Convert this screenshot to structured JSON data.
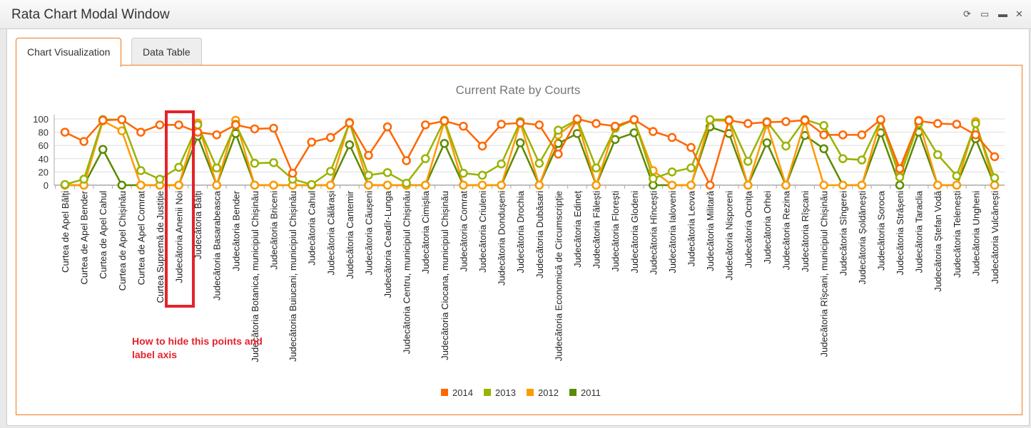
{
  "window": {
    "title": "Rata Chart Modal Window",
    "icons": [
      "refresh-icon",
      "maximize-icon",
      "minimize-icon",
      "close-icon"
    ]
  },
  "tabs": [
    {
      "label": "Chart Visualization",
      "active": true
    },
    {
      "label": "Data Table",
      "active": false
    }
  ],
  "annotation": "How to hide this points and label axis",
  "chart_data": {
    "type": "line",
    "title": "Current Rate by Courts",
    "ylim": [
      0,
      100
    ],
    "yticks": [
      0,
      20,
      40,
      60,
      80,
      100
    ],
    "grid": true,
    "legend": "bottom",
    "categories": [
      "Curtea de Apel Bălți",
      "Curtea de Apel Bender",
      "Curtea de Apel Cahul",
      "Curtea de Apel Chișinău",
      "Curtea de Apel Comrat",
      "Curtea Supremă de Justiție",
      "Judecătoria Anenii Noi",
      "Judecătoria Bălți",
      "Judecătoria Basarabeasca",
      "Judecătoria Bender",
      "Judecătoria Botanica, municipiul Chișinău",
      "Judecătoria Briceni",
      "Judecătoria Buiucani, municipiul Chișinău",
      "Judecătoria Cahul",
      "Judecătoria Călărași",
      "Judecătoria Cantemir",
      "Judecătoria Căușeni",
      "Judecătoria Ceadîr-Lunga",
      "Judecătoria Centru, municipiul Chișinău",
      "Judecătoria Cimișlia",
      "Judecătoria Ciocana, municipiul Chișinău",
      "Judecătoria Comrat",
      "Judecătoria Criuleni",
      "Judecătoria Dondușeni",
      "Judecătoria Drochia",
      "Judecătoria Dubăsari",
      "Judecătoria Economică de Circumscripție",
      "Judecătoria Edineț",
      "Judecătoria Fălești",
      "Judecătoria Florești",
      "Judecătoria Glodeni",
      "Judecătoria Hîncești",
      "Judecătoria Ialoveni",
      "Judecătoria Leova",
      "Judecătoria Militară",
      "Judecătoria Nisporeni",
      "Judecătoria Ocnița",
      "Judecătoria Orhei",
      "Judecătoria Rezina",
      "Judecătoria Rîșcani",
      "Judecătoria Rîșcani, municipiul Chișinău",
      "Judecătoria Sîngerei",
      "Judecătoria Șoldănești",
      "Judecătoria Soroca",
      "Judecătoria Strășeni",
      "Judecătoria Taraclia",
      "Judecătoria Ștefan Vodă",
      "Judecătoria Telenești",
      "Judecătoria Ungheni",
      "Judecătoria Vulcănești"
    ],
    "series": [
      {
        "name": "2014",
        "color": "#ff6600",
        "values": [
          80,
          66,
          98,
          99,
          80,
          91,
          91,
          80,
          76,
          91,
          85,
          86,
          18,
          65,
          72,
          94,
          45,
          88,
          37,
          91,
          97,
          89,
          59,
          92,
          94,
          91,
          47,
          100,
          93,
          89,
          99,
          81,
          72,
          57,
          0,
          98,
          93,
          95,
          96,
          98,
          76,
          76,
          76,
          99,
          25,
          97,
          93,
          92,
          76,
          43
        ]
      },
      {
        "name": "2013",
        "color": "#9ab200",
        "values": [
          1,
          9,
          99,
          99,
          22,
          9,
          27,
          91,
          26,
          92,
          33,
          34,
          9,
          1,
          21,
          94,
          15,
          19,
          3,
          40,
          98,
          18,
          15,
          32,
          96,
          33,
          83,
          99,
          26,
          86,
          99,
          10,
          20,
          26,
          99,
          99,
          36,
          96,
          59,
          99,
          90,
          40,
          38,
          98,
          12,
          93,
          46,
          14,
          93,
          11
        ]
      },
      {
        "name": "2012",
        "color": "#ff9900",
        "values": [
          0,
          0,
          97,
          82,
          0,
          0,
          0,
          94,
          0,
          98,
          0,
          0,
          0,
          0,
          0,
          95,
          0,
          0,
          0,
          0,
          96,
          0,
          0,
          0,
          94,
          0,
          76,
          98,
          0,
          89,
          98,
          22,
          0,
          0,
          98,
          97,
          0,
          92,
          0,
          96,
          0,
          0,
          0,
          98,
          20,
          98,
          0,
          0,
          96,
          0
        ]
      },
      {
        "name": "2011",
        "color": "#5a8a00",
        "values": [
          0,
          0,
          54,
          0,
          0,
          0,
          0,
          74,
          0,
          78,
          0,
          0,
          0,
          0,
          0,
          61,
          0,
          0,
          0,
          0,
          63,
          0,
          0,
          0,
          64,
          0,
          63,
          78,
          0,
          69,
          79,
          0,
          0,
          0,
          88,
          78,
          0,
          64,
          0,
          75,
          55,
          0,
          0,
          79,
          0,
          80,
          0,
          0,
          70,
          0
        ]
      }
    ]
  }
}
